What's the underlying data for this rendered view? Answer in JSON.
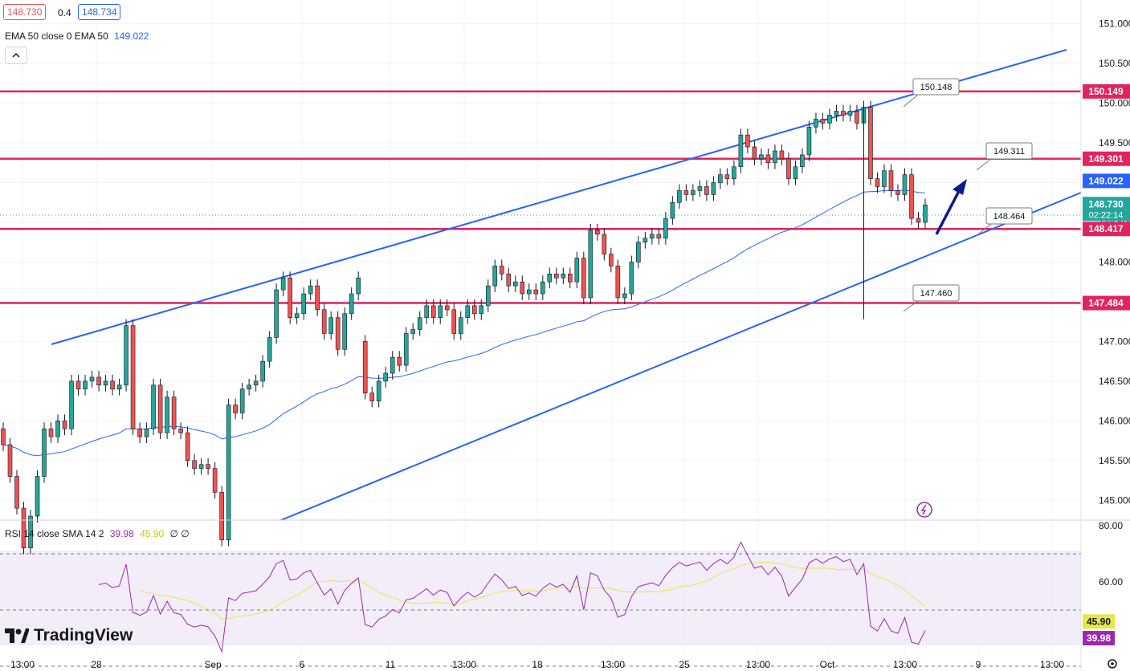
{
  "header": {
    "bid": "148.730",
    "spread": "0.4",
    "ask": "148.734",
    "ema_label": "EMA 50 close 0 EMA 50",
    "ema_value": "149.022",
    "rsi_label": "RSI 14 close SMA 14 2",
    "rsi_value": "39.98",
    "rsi_sma_value": "45.90",
    "rsi_extra": "∅ ∅"
  },
  "logo": {
    "text": "TradingView"
  },
  "colors": {
    "up": "#26a69a",
    "down": "#ef5350",
    "level": "#e0245e",
    "channel": "#2962ff",
    "ema": "#2962ff",
    "rsi": "#9c27b0",
    "rsi_sma": "#e6e64d",
    "arrow": "#0d1b8c"
  },
  "chart_data": {
    "type": "candlestick",
    "ylim": [
      144.75,
      151.3
    ],
    "price_ticks": [
      "145.000",
      "145.500",
      "146.000",
      "146.500",
      "147.000",
      "147.500",
      "148.000",
      "148.500",
      "149.000",
      "149.500",
      "150.000",
      "150.500",
      "151.000"
    ],
    "x_labels": [
      "13:00",
      "28",
      "Sep",
      "6",
      "11",
      "13:00",
      "18",
      "13:00",
      "25",
      "13:00",
      "Oct",
      "13:00",
      "9",
      "13:00"
    ],
    "last_price": "148.730",
    "countdown": "02:22:14",
    "levels": [
      {
        "label": "150.149",
        "value": 150.149
      },
      {
        "label": "149.301",
        "value": 149.301
      },
      {
        "label": "148.417",
        "value": 148.417
      },
      {
        "label": "147.484",
        "value": 147.484
      }
    ],
    "ema_badge": "149.022",
    "callouts": [
      "150.148",
      "149.311",
      "148.464",
      "147.460"
    ],
    "candles": [
      [
        145.9,
        145.7
      ],
      [
        145.7,
        145.3
      ],
      [
        145.3,
        144.9
      ],
      [
        144.9,
        144.4
      ],
      [
        144.4,
        144.8
      ],
      [
        144.8,
        145.3
      ],
      [
        145.3,
        145.9
      ],
      [
        145.9,
        145.8
      ],
      [
        145.8,
        146.0
      ],
      [
        146.0,
        145.9
      ],
      [
        145.9,
        146.5
      ],
      [
        146.5,
        146.4
      ],
      [
        146.4,
        146.5
      ],
      [
        146.5,
        146.55
      ],
      [
        146.55,
        146.45
      ],
      [
        146.45,
        146.5
      ],
      [
        146.5,
        146.4
      ],
      [
        146.4,
        146.45
      ],
      [
        146.45,
        147.2
      ],
      [
        147.2,
        145.9
      ],
      [
        145.9,
        145.8
      ],
      [
        145.8,
        145.9
      ],
      [
        145.9,
        146.45
      ],
      [
        146.45,
        145.85
      ],
      [
        145.85,
        146.3
      ],
      [
        146.3,
        145.9
      ],
      [
        145.9,
        145.85
      ],
      [
        145.85,
        145.5
      ],
      [
        145.5,
        145.4
      ],
      [
        145.4,
        145.45
      ],
      [
        145.45,
        145.4
      ],
      [
        145.4,
        145.1
      ],
      [
        145.1,
        144.5
      ],
      [
        144.5,
        146.2
      ],
      [
        146.2,
        146.1
      ],
      [
        146.1,
        146.4
      ],
      [
        146.4,
        146.45
      ],
      [
        146.45,
        146.5
      ],
      [
        146.5,
        146.75
      ],
      [
        146.75,
        147.05
      ],
      [
        147.05,
        147.65
      ],
      [
        147.65,
        147.8
      ],
      [
        147.8,
        147.3
      ],
      [
        147.3,
        147.35
      ],
      [
        147.35,
        147.6
      ],
      [
        147.6,
        147.7
      ],
      [
        147.7,
        147.4
      ],
      [
        147.4,
        147.1
      ],
      [
        147.1,
        147.3
      ],
      [
        147.3,
        146.9
      ],
      [
        146.9,
        147.35
      ],
      [
        147.35,
        147.6
      ],
      [
        147.6,
        147.8
      ],
      [
        147.0,
        146.35
      ],
      [
        146.35,
        146.25
      ],
      [
        146.25,
        146.5
      ],
      [
        146.5,
        146.6
      ],
      [
        146.6,
        146.8
      ],
      [
        146.8,
        146.7
      ],
      [
        146.7,
        147.1
      ],
      [
        147.1,
        147.15
      ],
      [
        147.15,
        147.3
      ],
      [
        147.3,
        147.45
      ],
      [
        147.45,
        147.3
      ],
      [
        147.3,
        147.45
      ],
      [
        147.45,
        147.4
      ],
      [
        147.4,
        147.1
      ],
      [
        147.1,
        147.3
      ],
      [
        147.3,
        147.45
      ],
      [
        147.45,
        147.35
      ],
      [
        147.35,
        147.45
      ],
      [
        147.45,
        147.7
      ],
      [
        147.7,
        147.95
      ],
      [
        147.95,
        147.85
      ],
      [
        147.85,
        147.7
      ],
      [
        147.7,
        147.75
      ],
      [
        147.75,
        147.6
      ],
      [
        147.6,
        147.65
      ],
      [
        147.65,
        147.6
      ],
      [
        147.6,
        147.75
      ],
      [
        147.75,
        147.85
      ],
      [
        147.85,
        147.8
      ],
      [
        147.8,
        147.85
      ],
      [
        147.85,
        147.75
      ],
      [
        147.75,
        148.05
      ],
      [
        148.05,
        147.55
      ],
      [
        147.55,
        148.4
      ],
      [
        148.4,
        148.35
      ],
      [
        148.35,
        148.1
      ],
      [
        148.1,
        147.95
      ],
      [
        147.95,
        147.55
      ],
      [
        147.55,
        147.6
      ],
      [
        147.6,
        148.0
      ],
      [
        148.0,
        148.25
      ],
      [
        148.25,
        148.3
      ],
      [
        148.3,
        148.35
      ],
      [
        148.35,
        148.3
      ],
      [
        148.3,
        148.55
      ],
      [
        148.55,
        148.75
      ],
      [
        148.75,
        148.9
      ],
      [
        148.9,
        148.85
      ],
      [
        148.85,
        148.9
      ],
      [
        148.9,
        148.95
      ],
      [
        148.95,
        148.85
      ],
      [
        148.85,
        149.0
      ],
      [
        149.0,
        149.1
      ],
      [
        149.1,
        149.05
      ],
      [
        149.05,
        149.2
      ],
      [
        149.2,
        149.6
      ],
      [
        149.6,
        149.45
      ],
      [
        149.45,
        149.3
      ],
      [
        149.3,
        149.35
      ],
      [
        149.35,
        149.25
      ],
      [
        149.25,
        149.4
      ],
      [
        149.4,
        149.3
      ],
      [
        149.3,
        149.05
      ],
      [
        149.05,
        149.2
      ],
      [
        149.2,
        149.35
      ],
      [
        149.35,
        149.7
      ],
      [
        149.7,
        149.8
      ],
      [
        149.8,
        149.75
      ],
      [
        149.75,
        149.85
      ],
      [
        149.85,
        149.9
      ],
      [
        149.9,
        149.85
      ],
      [
        149.85,
        149.9
      ],
      [
        149.9,
        149.75
      ],
      [
        149.75,
        149.95
      ],
      [
        149.95,
        149.05
      ],
      [
        149.05,
        148.95
      ],
      [
        148.95,
        149.15
      ],
      [
        149.15,
        148.9
      ],
      [
        148.9,
        148.85
      ],
      [
        148.85,
        149.1
      ],
      [
        149.1,
        148.55
      ],
      [
        148.55,
        148.5
      ],
      [
        148.5,
        148.72
      ]
    ],
    "rsi_ylim": [
      34,
      82
    ],
    "rsi_ticks": [
      "80.00",
      "60.00"
    ],
    "rsi_badges": [
      "45.90",
      "39.98"
    ],
    "rsi_bands": [
      70,
      50,
      30
    ]
  }
}
